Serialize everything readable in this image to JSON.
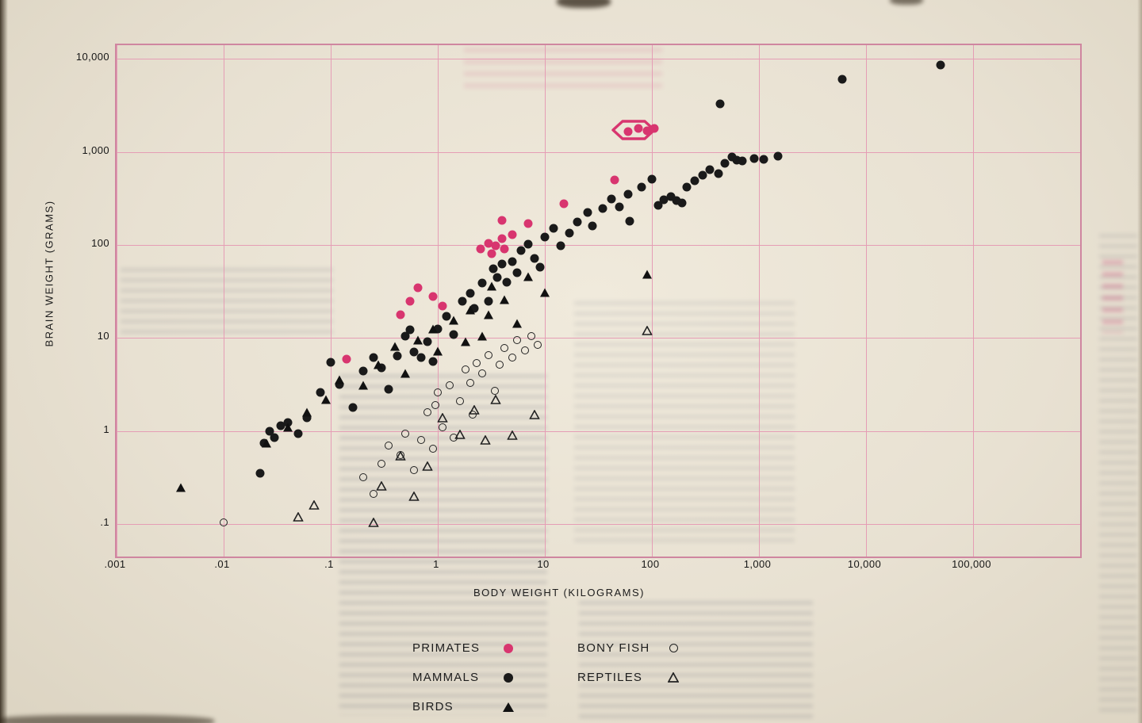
{
  "page": {
    "description": "Scanned book page showing a log-log scatter chart of brain weight versus body weight for vertebrate classes",
    "paper_color": "#e8e1d2",
    "accent_pink": "#d8356f",
    "grid_pink": "#e59db5",
    "ink_color": "#1a1a1a"
  },
  "chart_data": {
    "type": "scatter",
    "title": "",
    "xlabel": "BODY WEIGHT (KILOGRAMS)",
    "ylabel": "BRAIN WEIGHT (GRAMS)",
    "x_scale": "log",
    "y_scale": "log",
    "xlim": [
      0.001,
      1000000
    ],
    "ylim": [
      0.045,
      14000
    ],
    "grid": true,
    "legend_position": "bottom",
    "x_ticks": [
      {
        "label": ".001",
        "value": 0.001
      },
      {
        "label": ".01",
        "value": 0.01
      },
      {
        "label": ".1",
        "value": 0.1
      },
      {
        "label": "1",
        "value": 1
      },
      {
        "label": "10",
        "value": 10
      },
      {
        "label": "100",
        "value": 100
      },
      {
        "label": "1,000",
        "value": 1000
      },
      {
        "label": "10,000",
        "value": 10000
      },
      {
        "label": "100,000",
        "value": 100000
      }
    ],
    "y_ticks": [
      {
        "label": ".1",
        "value": 0.1
      },
      {
        "label": "1",
        "value": 1
      },
      {
        "label": "10",
        "value": 10
      },
      {
        "label": "100",
        "value": 100
      },
      {
        "label": "1,000",
        "value": 1000
      },
      {
        "label": "10,000",
        "value": 10000
      }
    ],
    "series": [
      {
        "name": "PRIMATES",
        "marker": "circle-filled",
        "color": "#d8356f",
        "points": [
          [
            0.14,
            6
          ],
          [
            0.45,
            18
          ],
          [
            0.55,
            25
          ],
          [
            0.65,
            35
          ],
          [
            0.9,
            28
          ],
          [
            1.1,
            22
          ],
          [
            2.5,
            90
          ],
          [
            3,
            105
          ],
          [
            3.2,
            80
          ],
          [
            3.5,
            98
          ],
          [
            4,
            118
          ],
          [
            4.2,
            90
          ],
          [
            5,
            130
          ],
          [
            4,
            185
          ],
          [
            7,
            170
          ],
          [
            15,
            275
          ],
          [
            45,
            500
          ],
          [
            60,
            1650
          ],
          [
            75,
            1800
          ],
          [
            90,
            1700
          ],
          [
            105,
            1800
          ]
        ]
      },
      {
        "name": "MAMMALS",
        "marker": "circle-filled",
        "color": "#1a1a1a",
        "points": [
          [
            0.022,
            0.35
          ],
          [
            0.024,
            0.75
          ],
          [
            0.027,
            1.0
          ],
          [
            0.03,
            0.85
          ],
          [
            0.034,
            1.15
          ],
          [
            0.04,
            1.25
          ],
          [
            0.05,
            0.95
          ],
          [
            0.06,
            1.4
          ],
          [
            0.08,
            2.6
          ],
          [
            0.1,
            5.5
          ],
          [
            0.12,
            3.2
          ],
          [
            0.16,
            1.8
          ],
          [
            0.2,
            4.4
          ],
          [
            0.25,
            6.2
          ],
          [
            0.3,
            4.8
          ],
          [
            0.35,
            2.8
          ],
          [
            0.42,
            6.4
          ],
          [
            0.5,
            10.5
          ],
          [
            0.55,
            12.2
          ],
          [
            0.6,
            7.1
          ],
          [
            0.7,
            6.2
          ],
          [
            0.8,
            9.2
          ],
          [
            0.9,
            5.6
          ],
          [
            1.0,
            12.5
          ],
          [
            1.2,
            17
          ],
          [
            1.4,
            11
          ],
          [
            1.7,
            25
          ],
          [
            2.0,
            30
          ],
          [
            2.2,
            21
          ],
          [
            2.6,
            39
          ],
          [
            3.0,
            25
          ],
          [
            3.3,
            56
          ],
          [
            3.6,
            45
          ],
          [
            4.0,
            62
          ],
          [
            4.4,
            40
          ],
          [
            5.0,
            66
          ],
          [
            5.5,
            50
          ],
          [
            6.0,
            88
          ],
          [
            7.0,
            102
          ],
          [
            8.0,
            72
          ],
          [
            9.0,
            58
          ],
          [
            10,
            122
          ],
          [
            12,
            152
          ],
          [
            14,
            98
          ],
          [
            17,
            135
          ],
          [
            20,
            178
          ],
          [
            25,
            225
          ],
          [
            28,
            160
          ],
          [
            35,
            245
          ],
          [
            42,
            312
          ],
          [
            50,
            255
          ],
          [
            60,
            352
          ],
          [
            62,
            180
          ],
          [
            80,
            422
          ],
          [
            100,
            505
          ],
          [
            115,
            265
          ],
          [
            130,
            305
          ],
          [
            150,
            330
          ],
          [
            170,
            300
          ],
          [
            190,
            282
          ],
          [
            210,
            415
          ],
          [
            250,
            490
          ],
          [
            300,
            560
          ],
          [
            350,
            645
          ],
          [
            420,
            590
          ],
          [
            430,
            3300
          ],
          [
            480,
            750
          ],
          [
            560,
            890
          ],
          [
            620,
            820
          ],
          [
            700,
            800
          ],
          [
            900,
            855
          ],
          [
            1100,
            835
          ],
          [
            1500,
            905
          ],
          [
            6000,
            6000
          ],
          [
            50000,
            8500
          ]
        ]
      },
      {
        "name": "BIRDS",
        "marker": "triangle-filled",
        "color": "#111111",
        "points": [
          [
            0.004,
            0.25
          ],
          [
            0.025,
            0.75
          ],
          [
            0.04,
            1.1
          ],
          [
            0.06,
            1.6
          ],
          [
            0.09,
            2.2
          ],
          [
            0.12,
            3.6
          ],
          [
            0.2,
            3.1
          ],
          [
            0.28,
            5.2
          ],
          [
            0.4,
            8.2
          ],
          [
            0.5,
            4.2
          ],
          [
            0.65,
            9.5
          ],
          [
            0.9,
            12.5
          ],
          [
            1.0,
            7.2
          ],
          [
            1.4,
            15.5
          ],
          [
            1.8,
            9.2
          ],
          [
            2.0,
            20
          ],
          [
            2.6,
            10.5
          ],
          [
            3.0,
            18
          ],
          [
            3.2,
            36
          ],
          [
            4.2,
            26
          ],
          [
            5.5,
            14.5
          ],
          [
            7.0,
            46
          ],
          [
            10,
            31
          ],
          [
            90,
            48
          ]
        ]
      },
      {
        "name": "BONY FISH",
        "marker": "circle-open",
        "color": "#222222",
        "points": [
          [
            0.01,
            0.105
          ],
          [
            0.2,
            0.32
          ],
          [
            0.25,
            0.21
          ],
          [
            0.3,
            0.45
          ],
          [
            0.35,
            0.7
          ],
          [
            0.45,
            0.55
          ],
          [
            0.5,
            0.95
          ],
          [
            0.6,
            0.38
          ],
          [
            0.7,
            0.8
          ],
          [
            0.8,
            1.6
          ],
          [
            0.9,
            0.65
          ],
          [
            0.95,
            1.9
          ],
          [
            1.0,
            2.6
          ],
          [
            1.1,
            1.1
          ],
          [
            1.3,
            3.1
          ],
          [
            1.4,
            0.85
          ],
          [
            1.6,
            2.1
          ],
          [
            1.8,
            4.6
          ],
          [
            2.0,
            3.3
          ],
          [
            2.1,
            1.5
          ],
          [
            2.3,
            5.4
          ],
          [
            2.6,
            4.2
          ],
          [
            3.0,
            6.5
          ],
          [
            3.4,
            2.7
          ],
          [
            3.8,
            5.2
          ],
          [
            4.2,
            7.8
          ],
          [
            5.0,
            6.2
          ],
          [
            5.5,
            9.5
          ],
          [
            6.5,
            7.4
          ],
          [
            7.5,
            10.5
          ],
          [
            8.5,
            8.4
          ]
        ]
      },
      {
        "name": "REPTILES",
        "marker": "triangle-open",
        "color": "#222222",
        "points": [
          [
            0.05,
            0.12
          ],
          [
            0.07,
            0.16
          ],
          [
            0.25,
            0.105
          ],
          [
            0.3,
            0.26
          ],
          [
            0.45,
            0.54
          ],
          [
            0.6,
            0.2
          ],
          [
            0.8,
            0.42
          ],
          [
            1.1,
            1.4
          ],
          [
            1.6,
            0.92
          ],
          [
            2.2,
            1.7
          ],
          [
            2.8,
            0.8
          ],
          [
            3.5,
            2.2
          ],
          [
            5.0,
            0.9
          ],
          [
            8.0,
            1.5
          ],
          [
            90,
            12
          ]
        ]
      }
    ],
    "annotations": [
      {
        "type": "hexagon-outline",
        "x": 67,
        "y": 1720,
        "color": "#d8356f"
      }
    ]
  },
  "legend": {
    "columns": [
      {
        "items": [
          {
            "label": "PRIMATES",
            "marker": "circle-filled",
            "color": "#d8356f"
          },
          {
            "label": "MAMMALS",
            "marker": "circle-filled",
            "color": "#1a1a1a"
          },
          {
            "label": "BIRDS",
            "marker": "triangle-filled",
            "color": "#111111"
          }
        ]
      },
      {
        "items": [
          {
            "label": "BONY FISH",
            "marker": "circle-open",
            "color": "#222222"
          },
          {
            "label": "REPTILES",
            "marker": "triangle-open",
            "color": "#222222"
          }
        ]
      }
    ]
  }
}
